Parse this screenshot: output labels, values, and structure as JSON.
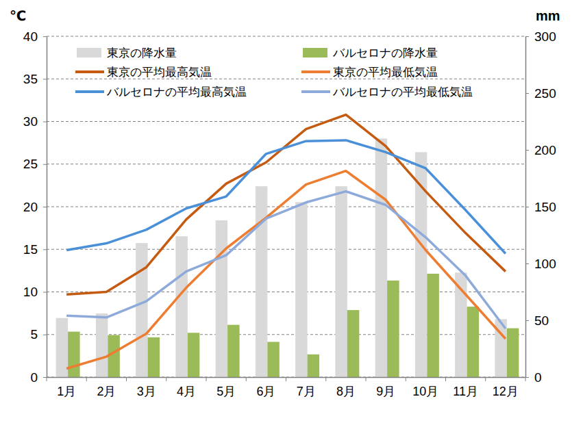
{
  "chart_data": {
    "type": "combo",
    "y_label": "℃",
    "y2_label": "mm",
    "categories": [
      "1月",
      "2月",
      "3月",
      "4月",
      "5月",
      "6月",
      "7月",
      "8月",
      "9月",
      "10月",
      "11月",
      "12月"
    ],
    "ylim": [
      0,
      40
    ],
    "yticks": [
      0,
      5,
      10,
      15,
      20,
      25,
      30,
      35,
      40
    ],
    "y2lim": [
      0,
      300
    ],
    "y2ticks": [
      0,
      50,
      100,
      150,
      200,
      250,
      300
    ],
    "grid": true,
    "legend": "top-left",
    "series": [
      {
        "name": "東京の降水量",
        "type": "bar",
        "axis": "y2",
        "color": "#d9d9d9",
        "values": [
          52,
          56,
          118,
          124,
          138,
          168,
          154,
          168,
          210,
          198,
          92,
          51
        ]
      },
      {
        "name": "バルセロナの降水量",
        "type": "bar",
        "axis": "y2",
        "color": "#9bbb59",
        "values": [
          40,
          37,
          35,
          39,
          46,
          31,
          20,
          59,
          85,
          91,
          62,
          43
        ]
      },
      {
        "name": "東京の平均最高気温",
        "type": "line",
        "color": "#c55a11",
        "values": [
          9.7,
          10.0,
          12.9,
          18.5,
          22.7,
          25.2,
          29.1,
          30.8,
          27.1,
          21.8,
          16.9,
          12.4
        ]
      },
      {
        "name": "東京の平均最低気温",
        "type": "line",
        "color": "#ed7d31",
        "values": [
          1.0,
          2.4,
          5.1,
          10.5,
          15.1,
          18.7,
          22.6,
          24.2,
          20.8,
          14.9,
          9.7,
          4.5
        ]
      },
      {
        "name": "バルセロナの平均最高気温",
        "type": "line",
        "color": "#4a90d9",
        "values": [
          14.9,
          15.7,
          17.3,
          19.8,
          21.2,
          26.2,
          27.7,
          27.8,
          26.4,
          24.5,
          19.6,
          14.5
        ]
      },
      {
        "name": "バルセロナの平均最低気温",
        "type": "line",
        "color": "#8eaadb",
        "values": [
          7.2,
          7.0,
          8.9,
          12.4,
          14.3,
          18.6,
          20.5,
          21.8,
          20.2,
          16.4,
          11.9,
          5.7
        ]
      }
    ]
  }
}
